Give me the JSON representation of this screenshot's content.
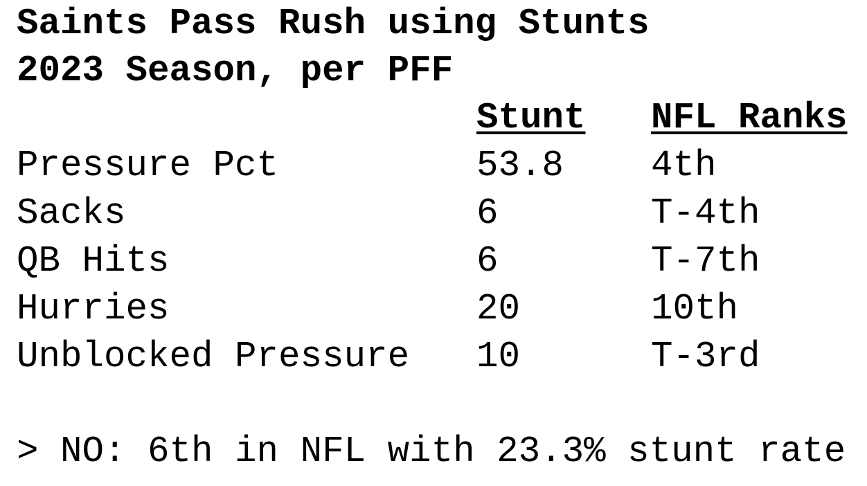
{
  "header": {
    "title": "Saints Pass Rush using Stunts",
    "subtitle": "2023 Season, per PFF"
  },
  "table": {
    "columns": [
      "Stunt",
      "NFL Ranks"
    ],
    "rows": [
      {
        "label": "Pressure Pct",
        "stunt": 53.8,
        "rank": "4th"
      },
      {
        "label": "Sacks",
        "stunt": 6,
        "rank": "T-4th"
      },
      {
        "label": "QB Hits",
        "stunt": 6,
        "rank": "T-7th"
      },
      {
        "label": "Hurries",
        "stunt": 20,
        "rank": "10th"
      },
      {
        "label": "Unblocked Pressure",
        "stunt": 10,
        "rank": "T-3rd"
      }
    ]
  },
  "note": "> NO: 6th in NFL with 23.3% stunt rate"
}
